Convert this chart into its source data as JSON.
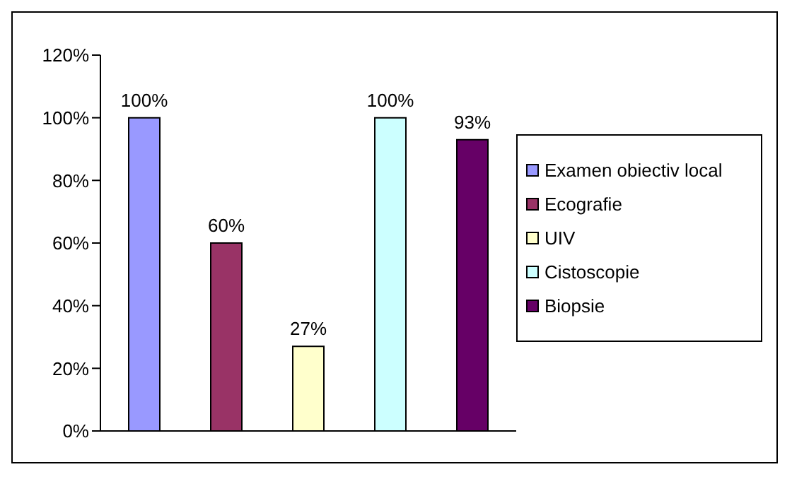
{
  "chart_data": {
    "type": "bar",
    "categories": [
      null
    ],
    "series": [
      {
        "name": "Examen obiectiv local",
        "color": "#9999ff",
        "values": [
          100
        ],
        "value_labels": [
          "100%"
        ]
      },
      {
        "name": "Ecografie",
        "color": "#993366",
        "values": [
          60
        ],
        "value_labels": [
          "60%"
        ]
      },
      {
        "name": "UIV",
        "color": "#ffffcc",
        "values": [
          27
        ],
        "value_labels": [
          "27%"
        ]
      },
      {
        "name": "Cistoscopie",
        "color": "#ccffff",
        "values": [
          100
        ],
        "value_labels": [
          "100%"
        ]
      },
      {
        "name": "Biopsie",
        "color": "#660066",
        "values": [
          93
        ],
        "value_labels": [
          "93%"
        ]
      }
    ],
    "ylim": [
      0,
      120
    ],
    "yticks": [
      {
        "value": 0,
        "label": "0%"
      },
      {
        "value": 20,
        "label": "20%"
      },
      {
        "value": 40,
        "label": "40%"
      },
      {
        "value": 60,
        "label": "60%"
      },
      {
        "value": 80,
        "label": "80%"
      },
      {
        "value": 100,
        "label": "100%"
      },
      {
        "value": 120,
        "label": "120%"
      }
    ],
    "grid": false,
    "legend": "right"
  }
}
